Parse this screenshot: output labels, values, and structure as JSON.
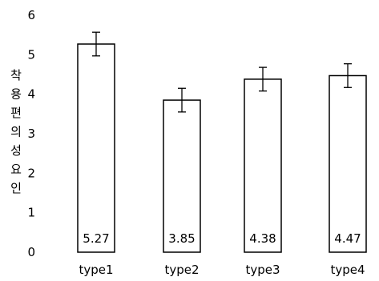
{
  "chart_data": {
    "type": "bar",
    "title": "",
    "xlabel": "",
    "ylabel": "착용편의성요인",
    "categories": [
      "type1",
      "type2",
      "type3",
      "type4"
    ],
    "values": [
      5.27,
      3.85,
      4.38,
      4.47
    ],
    "value_labels": [
      "5.27",
      "3.85",
      "4.38",
      "4.47"
    ],
    "error_bars": [
      0.3,
      0.3,
      0.3,
      0.3
    ],
    "ylim": [
      0,
      6
    ],
    "yticks": [
      0,
      1,
      2,
      3,
      4,
      5,
      6
    ],
    "grid": false,
    "legend": "none",
    "colors": {
      "bar_fill": "#ffffff",
      "bar_stroke": "#000000",
      "axis": "#000000"
    }
  }
}
